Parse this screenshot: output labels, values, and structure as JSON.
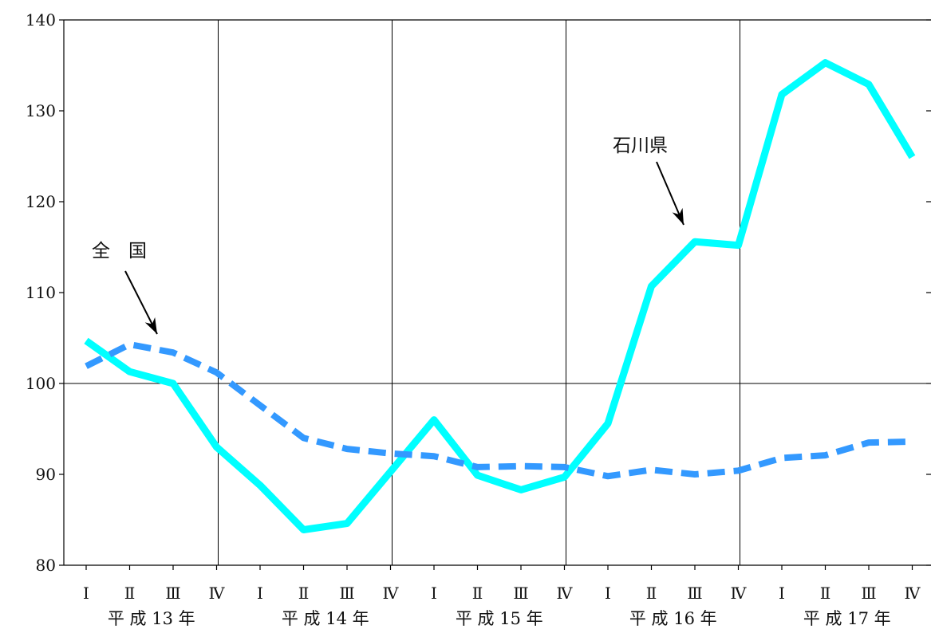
{
  "chart_data": {
    "type": "line",
    "title": "",
    "xlabel": "",
    "ylabel": "",
    "ylim": [
      80,
      140
    ],
    "yticks": [
      80,
      90,
      100,
      110,
      120,
      130,
      140
    ],
    "categories": [
      "Ⅰ",
      "Ⅱ",
      "Ⅲ",
      "Ⅳ",
      "Ⅰ",
      "Ⅱ",
      "Ⅲ",
      "Ⅳ",
      "Ⅰ",
      "Ⅱ",
      "Ⅲ",
      "Ⅳ",
      "Ⅰ",
      "Ⅱ",
      "Ⅲ",
      "Ⅳ",
      "Ⅰ",
      "Ⅱ",
      "Ⅲ",
      "Ⅳ"
    ],
    "year_groups": [
      {
        "label": "平 成 13 年",
        "start": 0,
        "count": 4
      },
      {
        "label": "平 成 14 年",
        "start": 4,
        "count": 4
      },
      {
        "label": "平 成 15 年",
        "start": 8,
        "count": 4
      },
      {
        "label": "平 成 16 年",
        "start": 12,
        "count": 4
      },
      {
        "label": "平 成 17 年",
        "start": 16,
        "count": 4
      }
    ],
    "reference_line": 100,
    "series": [
      {
        "name": "石川県",
        "style": "solid",
        "color": "#00ffff",
        "values": [
          104.7,
          101.3,
          100.0,
          93.0,
          88.8,
          83.9,
          84.6,
          90.3,
          96.0,
          89.9,
          88.3,
          89.7,
          95.6,
          110.7,
          115.6,
          115.2,
          131.8,
          135.3,
          132.9,
          124.9
        ]
      },
      {
        "name": "全　国",
        "style": "dashed",
        "color": "#3399ff",
        "values": [
          101.9,
          104.3,
          103.4,
          101.2,
          97.6,
          94.0,
          92.8,
          92.3,
          92.0,
          90.8,
          90.9,
          90.8,
          89.8,
          90.5,
          90.0,
          90.4,
          91.8,
          92.1,
          93.5,
          93.6
        ]
      }
    ],
    "annotations": [
      {
        "text": "全　国",
        "series": 1
      },
      {
        "text": "石川県",
        "series": 0
      }
    ]
  }
}
